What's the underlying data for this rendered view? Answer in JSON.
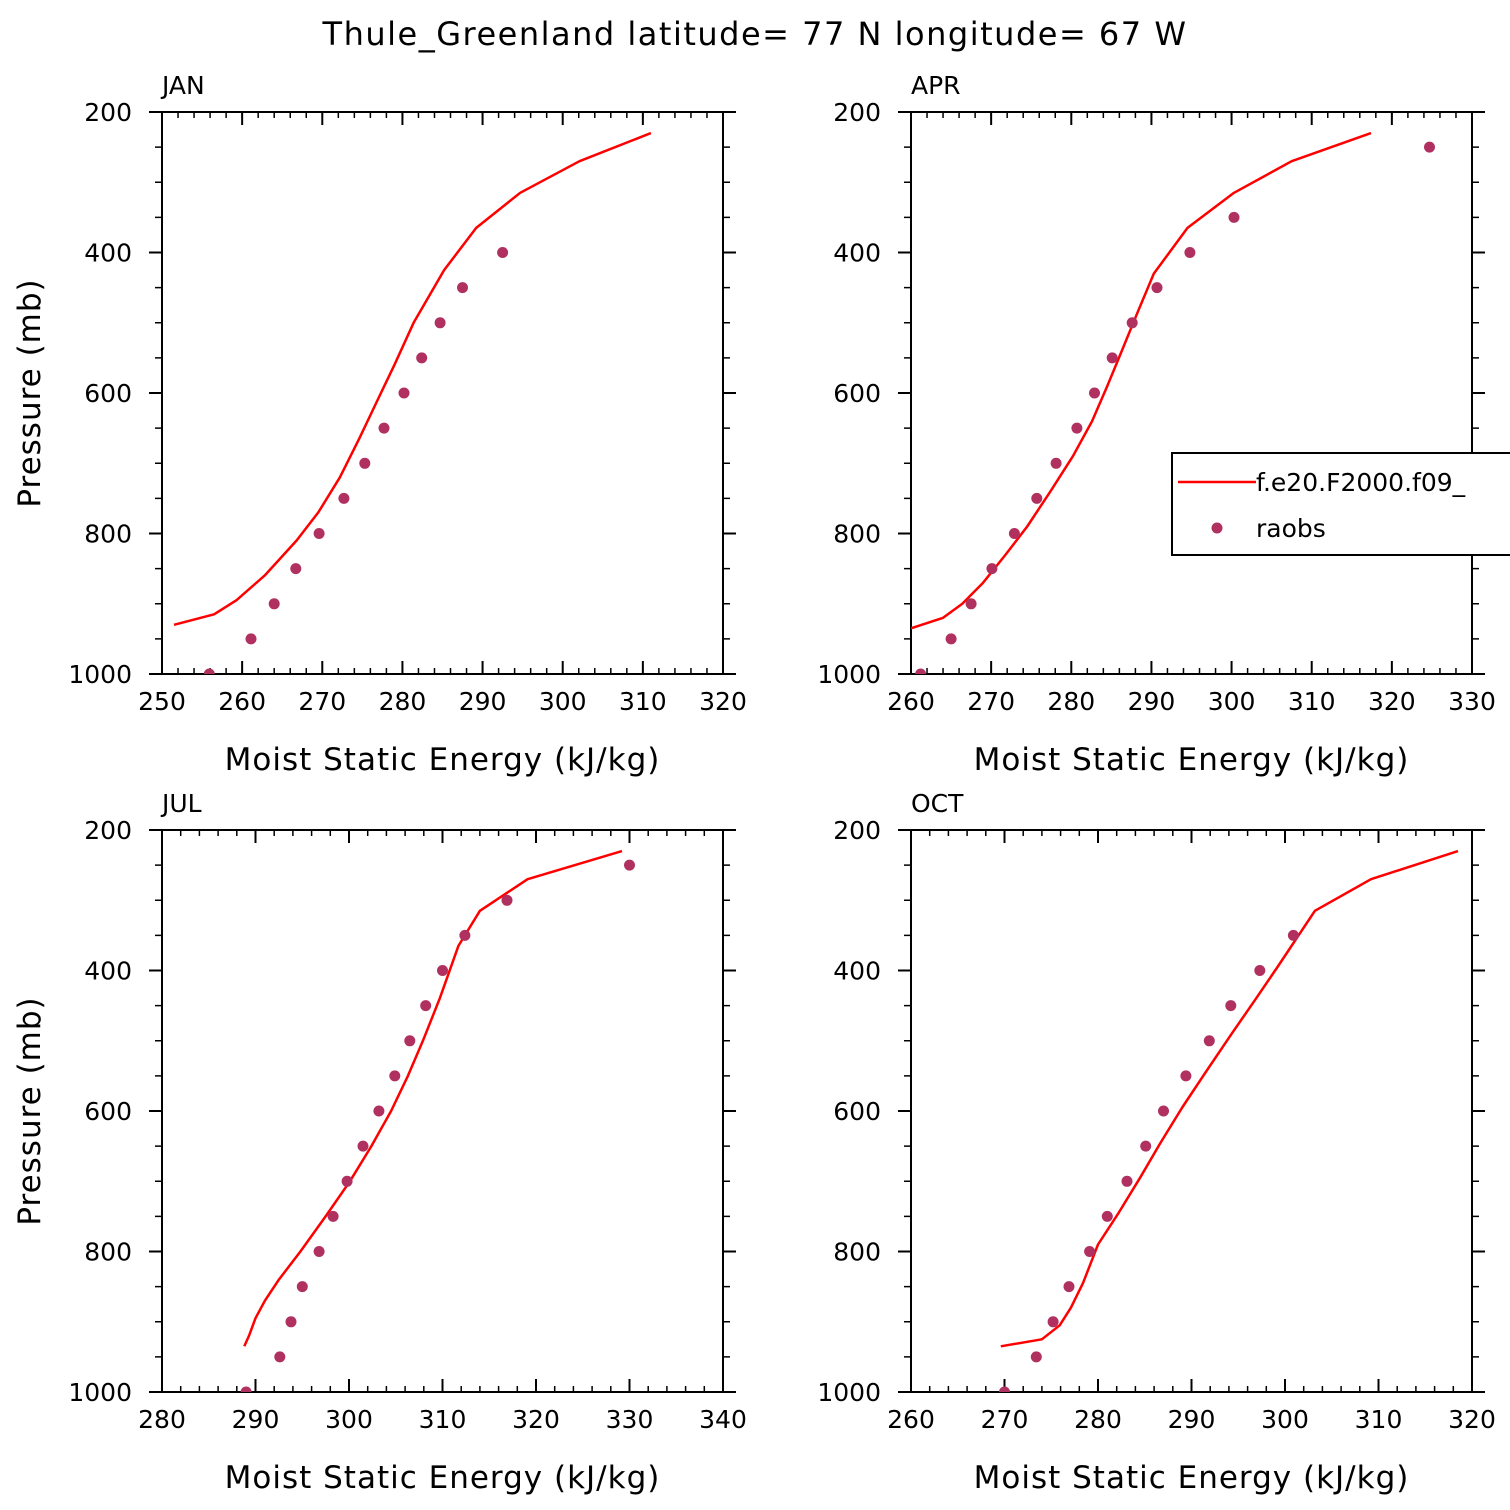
{
  "figure": {
    "title": "Thule_Greenland  latitude= 77 N longitude= 67 W"
  },
  "colors": {
    "model_line": "#ff0000",
    "raobs_marker": "#b03060",
    "axis": "#000000",
    "background": "#ffffff"
  },
  "legend": {
    "panel": "APR",
    "entries": [
      {
        "label": "f.e20.F2000.f09_",
        "style": "line"
      },
      {
        "label": "raobs",
        "style": "marker"
      }
    ]
  },
  "chart_data": [
    {
      "type": "line",
      "panel_label": "JAN",
      "xlabel": "Moist Static Energy (kJ/kg)",
      "ylabel": "Pressure (mb)",
      "xlim": [
        250,
        320
      ],
      "ylim": [
        1000,
        200
      ],
      "y_inverted": true,
      "xticks": [
        250,
        260,
        270,
        280,
        290,
        300,
        310,
        320
      ],
      "yticks": [
        200,
        400,
        600,
        800,
        1000
      ],
      "series": [
        {
          "style": "line",
          "x": [
            251.5,
            256.5,
            259.3,
            262.8,
            266.8,
            269.5,
            272.2,
            274.6,
            276.9,
            279.0,
            281.4,
            285.2,
            289.2,
            294.7,
            302.1,
            311.0
          ],
          "y": [
            930,
            915,
            895,
            860,
            810,
            770,
            720,
            665,
            610,
            560,
            500,
            425,
            365,
            315,
            270,
            230
          ]
        },
        {
          "style": "marker",
          "x": [
            255.9,
            261.1,
            264.0,
            266.7,
            269.6,
            272.7,
            275.3,
            277.7,
            280.2,
            282.4,
            284.7,
            287.5,
            292.5
          ],
          "y": [
            1000,
            950,
            900,
            850,
            800,
            750,
            700,
            650,
            600,
            550,
            500,
            450,
            400
          ]
        }
      ]
    },
    {
      "type": "line",
      "panel_label": "APR",
      "xlabel": "Moist Static Energy (kJ/kg)",
      "ylabel": "",
      "xlim": [
        260,
        330
      ],
      "ylim": [
        1000,
        200
      ],
      "y_inverted": true,
      "xticks": [
        260,
        270,
        280,
        290,
        300,
        310,
        320,
        330
      ],
      "yticks": [
        200,
        400,
        600,
        800,
        1000
      ],
      "series": [
        {
          "style": "line",
          "x": [
            260.0,
            264.0,
            266.4,
            269.0,
            271.8,
            274.5,
            277.4,
            280.2,
            282.6,
            284.5,
            286.3,
            288.1,
            290.3,
            294.5,
            300.3,
            307.5,
            317.4
          ],
          "y": [
            935,
            920,
            900,
            870,
            830,
            790,
            740,
            690,
            640,
            590,
            540,
            490,
            430,
            365,
            315,
            270,
            230
          ]
        },
        {
          "style": "marker",
          "x": [
            261.2,
            265.0,
            267.5,
            270.1,
            272.9,
            275.7,
            278.1,
            280.7,
            282.9,
            285.1,
            287.6,
            290.7,
            294.8,
            300.3,
            324.7
          ],
          "y": [
            1000,
            950,
            900,
            850,
            800,
            750,
            700,
            650,
            600,
            550,
            500,
            450,
            400,
            350,
            250
          ]
        }
      ]
    },
    {
      "type": "line",
      "panel_label": "JUL",
      "xlabel": "Moist Static Energy (kJ/kg)",
      "ylabel": "Pressure (mb)",
      "xlim": [
        280,
        340
      ],
      "ylim": [
        1000,
        200
      ],
      "y_inverted": true,
      "xticks": [
        280,
        290,
        300,
        310,
        320,
        330,
        340
      ],
      "yticks": [
        200,
        400,
        600,
        800,
        1000
      ],
      "series": [
        {
          "style": "line",
          "x": [
            288.8,
            289.3,
            290.0,
            291.0,
            292.5,
            294.8,
            297.5,
            300.1,
            302.4,
            304.5,
            306.3,
            307.9,
            309.7,
            311.7,
            314.0,
            319.1,
            329.2
          ],
          "y": [
            935,
            920,
            895,
            870,
            840,
            800,
            750,
            700,
            650,
            600,
            550,
            500,
            440,
            365,
            315,
            270,
            230
          ]
        },
        {
          "style": "marker",
          "x": [
            289.0,
            292.6,
            293.8,
            295.0,
            296.8,
            298.3,
            299.8,
            301.5,
            303.2,
            304.9,
            306.5,
            308.2,
            310.0,
            312.4,
            316.9,
            330.0
          ],
          "y": [
            1000,
            950,
            900,
            850,
            800,
            750,
            700,
            650,
            600,
            550,
            500,
            450,
            400,
            350,
            300,
            250
          ]
        }
      ]
    },
    {
      "type": "line",
      "panel_label": "OCT",
      "xlabel": "Moist Static Energy (kJ/kg)",
      "ylabel": "",
      "xlim": [
        260,
        320
      ],
      "ylim": [
        1000,
        200
      ],
      "y_inverted": true,
      "xticks": [
        260,
        270,
        280,
        290,
        300,
        310,
        320
      ],
      "yticks": [
        200,
        400,
        600,
        800,
        1000
      ],
      "series": [
        {
          "style": "line",
          "x": [
            269.6,
            274.0,
            275.9,
            277.1,
            278.4,
            280.0,
            282.2,
            284.5,
            286.7,
            289.0,
            291.5,
            294.3,
            296.9,
            299.2,
            303.2,
            309.2,
            318.5
          ],
          "y": [
            935,
            925,
            905,
            880,
            845,
            790,
            745,
            695,
            645,
            595,
            545,
            490,
            440,
            395,
            315,
            270,
            230
          ]
        },
        {
          "style": "marker",
          "x": [
            270.0,
            273.4,
            275.2,
            276.9,
            279.1,
            281.0,
            283.1,
            285.1,
            287.0,
            289.4,
            291.9,
            294.2,
            297.3,
            300.9
          ],
          "y": [
            1000,
            950,
            900,
            850,
            800,
            750,
            700,
            650,
            600,
            550,
            500,
            450,
            400,
            350
          ]
        }
      ]
    }
  ]
}
